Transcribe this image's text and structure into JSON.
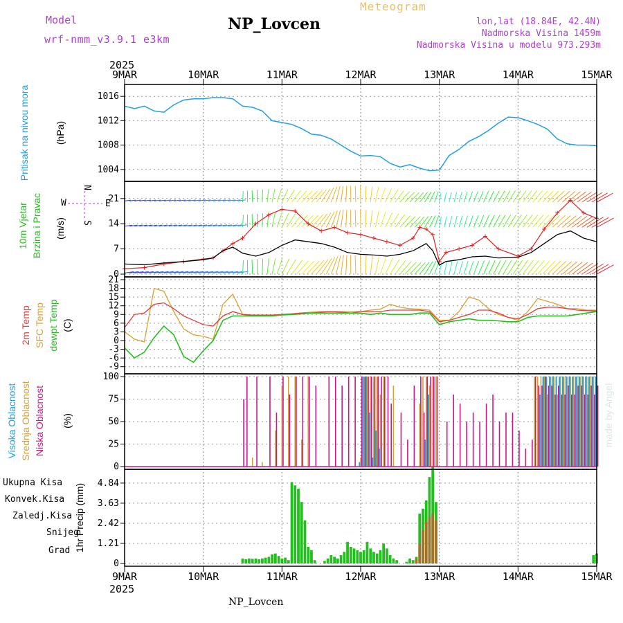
{
  "header": {
    "model_label": "Model",
    "model_name": "wrf-nmm_v3.9.1 e3km",
    "station": "NP_Lovcen",
    "kind": "Meteogram",
    "lonlat": "lon,lat (18.84E, 42.4N)",
    "alt": "Nadmorska Visina 1459m",
    "alt_model": "Nadmorska Visina u modelu 973.293m",
    "colors": {
      "model": "#b040d0",
      "kind": "#e8c070",
      "station": "#000000"
    }
  },
  "time_axis": {
    "year": "2025",
    "labels": [
      "9MAR",
      "10MAR",
      "11MAR",
      "12MAR",
      "13MAR",
      "14MAR",
      "15MAR"
    ],
    "hours": 144
  },
  "footer": {
    "station": "NP_Lovcen"
  },
  "credit": "made by Angel",
  "colors": {
    "pressure": "#1fa0e0",
    "temp2m": "#e83a3a",
    "sfc": "#d8a030",
    "dewpt": "#22c01c",
    "wind_speed": "#000000",
    "wind_gust": "#e02020",
    "cloud_high": "#1fa0e0",
    "cloud_mid": "#d8a030",
    "cloud_low": "#d0148c",
    "precip_total": "#22c01c",
    "precip_conv": "#e83a3a",
    "precip_frozen": "#f07020",
    "snow": "#3030f0",
    "graup": "#20c0c0"
  },
  "chart_data": [
    {
      "type": "line",
      "id": "pressure",
      "title": "Pritisak na nivou mora",
      "ylabel": "(hPa)",
      "yticks": [
        "1004",
        "1008",
        "1012",
        "1016"
      ],
      "ylim": [
        1002.5,
        1017.5
      ],
      "x": [
        0,
        3,
        6,
        9,
        12,
        15,
        18,
        21,
        24,
        27,
        30,
        33,
        36,
        39,
        42,
        45,
        48,
        51,
        54,
        57,
        60,
        63,
        66,
        69,
        72,
        75,
        78,
        81,
        84,
        87,
        90,
        93,
        96,
        99,
        102,
        105,
        108,
        111,
        114,
        117,
        120,
        123,
        126,
        129,
        132,
        135,
        138,
        141,
        144
      ],
      "series": [
        {
          "name": "Pritisak",
          "values": [
            1014.4,
            1014.0,
            1014.4,
            1013.6,
            1013.4,
            1014.6,
            1015.4,
            1015.6,
            1015.6,
            1015.8,
            1015.8,
            1015.6,
            1014.4,
            1014.2,
            1013.6,
            1012.0,
            1011.7,
            1011.4,
            1010.7,
            1009.8,
            1009.6,
            1009.0,
            1008.0,
            1007.0,
            1006.2,
            1006.3,
            1006.1,
            1005.0,
            1004.4,
            1004.8,
            1004.2,
            1003.8,
            1003.9,
            1006.3,
            1007.3,
            1008.6,
            1009.4,
            1010.4,
            1011.6,
            1012.6,
            1012.5,
            1012.0,
            1011.4,
            1010.6,
            1009.0,
            1008.2,
            1008.0,
            1008.0,
            1007.9
          ]
        }
      ]
    },
    {
      "type": "line",
      "id": "wind",
      "title": "10m Vjetar Brzina i Pravac",
      "ylabel": "(m/s)",
      "compass": {
        "n": "N",
        "w": "W",
        "e": "E",
        "s": "S"
      },
      "yticks": [
        "0",
        "7",
        "14",
        "21"
      ],
      "ylim": [
        0,
        25
      ],
      "x": [
        0,
        6,
        12,
        18,
        24,
        27,
        30,
        33,
        36,
        40,
        44,
        48,
        52,
        56,
        60,
        64,
        68,
        72,
        76,
        80,
        84,
        88,
        90,
        92,
        94,
        96,
        98,
        102,
        106,
        110,
        114,
        120,
        124,
        128,
        132,
        136,
        140,
        144
      ],
      "series": [
        {
          "name": "speed",
          "values": [
            2.8,
            2.6,
            3.1,
            3.5,
            4.0,
            4.5,
            6.5,
            7.5,
            5.8,
            5.0,
            6.0,
            8.0,
            9.5,
            9.0,
            8.5,
            7.5,
            6.0,
            5.5,
            5.3,
            5.0,
            5.5,
            6.5,
            7.5,
            8.5,
            6.5,
            2.5,
            3.5,
            4.0,
            4.8,
            5.0,
            4.5,
            4.7,
            6.0,
            8.5,
            11.0,
            12.0,
            10.0,
            9.0
          ]
        },
        {
          "name": "gust",
          "values": [
            1.5,
            1.8,
            2.8,
            3.5,
            4.2,
            4.5,
            6.5,
            8.5,
            10.0,
            14.0,
            16.5,
            18.0,
            17.5,
            14.0,
            12.0,
            13.0,
            11.5,
            11.0,
            10.0,
            9.0,
            8.0,
            10.0,
            13.0,
            12.5,
            11.0,
            3.5,
            6.0,
            7.0,
            8.0,
            10.5,
            7.0,
            5.0,
            7.0,
            12.5,
            17.0,
            20.5,
            17.0,
            15.5
          ]
        }
      ]
    },
    {
      "type": "line",
      "id": "temp",
      "title": "2m Temp / SFC Temp / dewpt Temp",
      "ylabel": "(C)",
      "legend": [
        "2m Temp",
        "SFC Temp",
        "dewpt Temp"
      ],
      "yticks": [
        "-9",
        "-6",
        "-3",
        "0",
        "3",
        "6",
        "9",
        "12",
        "15",
        "18",
        "21"
      ],
      "ylim": [
        -10.5,
        21
      ],
      "x": [
        0,
        3,
        6,
        9,
        12,
        15,
        18,
        21,
        24,
        27,
        30,
        33,
        36,
        39,
        42,
        45,
        48,
        51,
        54,
        57,
        60,
        63,
        66,
        69,
        72,
        75,
        78,
        81,
        84,
        87,
        90,
        93,
        96,
        99,
        102,
        105,
        108,
        111,
        114,
        117,
        120,
        123,
        126,
        129,
        132,
        135,
        138,
        141,
        144
      ],
      "series": [
        {
          "name": "2m Temp",
          "values": [
            4.5,
            9.0,
            9.5,
            12.5,
            13.0,
            11.0,
            8.5,
            7.0,
            5.5,
            5.0,
            8.5,
            10.0,
            9.0,
            8.8,
            8.8,
            8.8,
            9.0,
            9.2,
            9.5,
            9.5,
            9.8,
            10.0,
            9.8,
            9.5,
            10.0,
            10.0,
            10.0,
            10.5,
            10.5,
            10.5,
            10.5,
            10.0,
            6.5,
            7.0,
            8.0,
            9.0,
            10.5,
            10.5,
            9.5,
            8.0,
            7.5,
            9.0,
            11.0,
            11.5,
            11.5,
            11.0,
            10.5,
            10.3,
            10.2
          ]
        },
        {
          "name": "SFC Temp",
          "values": [
            3.0,
            0.5,
            -0.5,
            18.0,
            17.0,
            10.0,
            4.0,
            2.0,
            1.5,
            0.5,
            12.5,
            16.0,
            9.0,
            8.5,
            8.5,
            8.5,
            9.0,
            9.2,
            9.5,
            9.8,
            10.0,
            10.0,
            10.0,
            10.0,
            10.0,
            10.5,
            10.8,
            12.5,
            11.5,
            11.0,
            10.8,
            10.5,
            7.0,
            7.0,
            10.0,
            15.0,
            14.0,
            11.0,
            9.0,
            8.0,
            7.0,
            10.0,
            14.5,
            13.5,
            12.5,
            11.0,
            11.0,
            10.5,
            10.5
          ]
        },
        {
          "name": "dewpt Temp",
          "values": [
            -2.5,
            -6.0,
            -4.0,
            1.0,
            5.0,
            2.0,
            -5.5,
            -7.5,
            -3.5,
            0.0,
            7.0,
            8.5,
            8.5,
            8.5,
            8.5,
            8.5,
            8.8,
            9.0,
            9.2,
            9.5,
            9.5,
            9.5,
            9.5,
            9.5,
            9.5,
            9.0,
            9.5,
            9.0,
            9.0,
            9.0,
            9.5,
            9.5,
            5.5,
            6.5,
            7.0,
            7.5,
            7.0,
            7.0,
            6.8,
            6.5,
            6.5,
            8.0,
            8.5,
            8.5,
            8.5,
            8.5,
            9.0,
            9.5,
            10.0
          ]
        }
      ]
    },
    {
      "type": "bar",
      "id": "clouds",
      "title": "Visoka / Srednja / Niska Oblacnost",
      "ylabel": "(%)",
      "legend": [
        "Visoka Oblacnost",
        "Srednja Oblacnost",
        "Niska Oblacnost"
      ],
      "yticks": [
        "0",
        "25",
        "50",
        "75",
        "100"
      ],
      "ylim": [
        0,
        100
      ],
      "x": [
        0,
        4,
        8,
        12,
        16,
        20,
        24,
        28,
        32,
        36,
        37,
        39,
        40,
        42,
        44,
        46,
        48,
        50,
        52,
        54,
        56,
        58,
        60,
        62,
        64,
        66,
        68,
        70,
        72,
        73,
        74,
        75,
        76,
        77,
        78,
        79,
        80,
        81,
        82,
        84,
        86,
        88,
        90,
        91,
        92,
        93,
        94,
        95,
        96,
        98,
        100,
        102,
        104,
        106,
        108,
        110,
        112,
        114,
        116,
        118,
        120,
        122,
        124,
        125,
        126,
        127,
        128,
        129,
        130,
        131,
        132,
        133,
        134,
        135,
        136,
        137,
        138,
        139,
        140,
        141,
        142,
        143,
        144
      ],
      "series": [
        {
          "name": "Visoka",
          "values": [
            0,
            0,
            0,
            0,
            0,
            0,
            0,
            0,
            0,
            0,
            0,
            0,
            0,
            0,
            0,
            0,
            0,
            0,
            0,
            0,
            0,
            0,
            0,
            0,
            0,
            0,
            0,
            0,
            5,
            100,
            100,
            60,
            10,
            40,
            20,
            0,
            0,
            0,
            0,
            0,
            0,
            0,
            0,
            0,
            30,
            80,
            0,
            0,
            0,
            0,
            0,
            0,
            0,
            0,
            0,
            0,
            0,
            0,
            0,
            0,
            0,
            0,
            0,
            0,
            0,
            80,
            100,
            100,
            100,
            100,
            100,
            100,
            100,
            100,
            100,
            100,
            100,
            100,
            100,
            100,
            100,
            100,
            100
          ]
        },
        {
          "name": "Srednja",
          "values": [
            0,
            0,
            0,
            0,
            0,
            0,
            0,
            0,
            0,
            0,
            0,
            10,
            0,
            5,
            0,
            40,
            90,
            100,
            100,
            30,
            100,
            0,
            0,
            0,
            0,
            0,
            0,
            0,
            10,
            100,
            100,
            100,
            100,
            100,
            80,
            100,
            0,
            0,
            90,
            0,
            0,
            0,
            70,
            100,
            100,
            90,
            100,
            100,
            0,
            0,
            0,
            0,
            0,
            0,
            0,
            0,
            0,
            0,
            0,
            0,
            0,
            0,
            0,
            100,
            100,
            100,
            100,
            80,
            100,
            100,
            80,
            100,
            100,
            100,
            100,
            100,
            100,
            100,
            100,
            100,
            100,
            100,
            100
          ]
        },
        {
          "name": "Niska",
          "values": [
            0,
            0,
            0,
            0,
            0,
            0,
            0,
            0,
            0,
            75,
            100,
            0,
            100,
            0,
            100,
            60,
            100,
            80,
            100,
            100,
            100,
            90,
            0,
            100,
            100,
            90,
            100,
            100,
            100,
            100,
            100,
            100,
            100,
            100,
            100,
            100,
            100,
            70,
            0,
            60,
            30,
            90,
            100,
            60,
            100,
            100,
            100,
            100,
            0,
            50,
            80,
            70,
            50,
            60,
            50,
            70,
            80,
            50,
            60,
            60,
            40,
            20,
            30,
            100,
            90,
            90,
            100,
            90,
            90,
            80,
            90,
            80,
            80,
            90,
            80,
            80,
            90,
            90,
            80,
            80,
            90,
            80,
            90
          ]
        }
      ]
    },
    {
      "type": "bar",
      "id": "precip",
      "title": "1hr Precip",
      "ylabel": "1hr Precip (mm)",
      "legend": [
        "Ukupna Kisa",
        "Konvek.Kisa",
        "Zaledj.Kisa",
        "Snijeg",
        "Grad"
      ],
      "yticks": [
        "0",
        "1.21",
        "2.42",
        "3.63",
        "4.84"
      ],
      "ylim": [
        0,
        5.5
      ],
      "x": [
        36,
        37,
        38,
        39,
        40,
        41,
        42,
        43,
        44,
        45,
        46,
        47,
        48,
        49,
        50,
        51,
        52,
        53,
        54,
        55,
        56,
        57,
        58,
        59,
        60,
        61,
        62,
        63,
        64,
        65,
        66,
        67,
        68,
        69,
        70,
        71,
        72,
        73,
        74,
        75,
        76,
        77,
        78,
        79,
        80,
        81,
        82,
        83,
        84,
        85,
        86,
        87,
        88,
        89,
        90,
        91,
        92,
        93,
        94,
        95,
        143,
        144
      ],
      "series": [
        {
          "name": "Ukupna Kisa",
          "values": [
            0.3,
            0.25,
            0.3,
            0.28,
            0.3,
            0.25,
            0.3,
            0.35,
            0.4,
            0.55,
            0.6,
            0.45,
            0.3,
            0.35,
            0.2,
            4.9,
            4.7,
            4.5,
            3.7,
            2.6,
            1.0,
            0.8,
            0.2,
            0.0,
            0.0,
            0.15,
            0.3,
            0.5,
            0.4,
            0.3,
            0.5,
            0.7,
            1.3,
            1.0,
            0.9,
            0.8,
            0.7,
            0.8,
            1.3,
            0.9,
            0.7,
            0.6,
            0.8,
            1.2,
            0.9,
            0.5,
            0.3,
            0.2,
            0.0,
            0.0,
            0.1,
            0.3,
            0.2,
            0.4,
            3.0,
            3.3,
            3.8,
            5.2,
            5.8,
            3.7,
            0.5,
            0.6
          ]
        },
        {
          "name": "Konvek.Kisa",
          "values": [
            0,
            0,
            0,
            0,
            0,
            0,
            0,
            0,
            0,
            0,
            0,
            0,
            0,
            0,
            0,
            0,
            0,
            0,
            0,
            0,
            0,
            0,
            0,
            0,
            0,
            0,
            0,
            0,
            0,
            0,
            0,
            0,
            0,
            0,
            0,
            0,
            0,
            0,
            0,
            0,
            0,
            0,
            0,
            0,
            0,
            0,
            0,
            0,
            0,
            0,
            0,
            0,
            0,
            0.3,
            1.2,
            2.0,
            2.5,
            2.8,
            3.0,
            2.6,
            0,
            0
          ]
        }
      ]
    }
  ]
}
